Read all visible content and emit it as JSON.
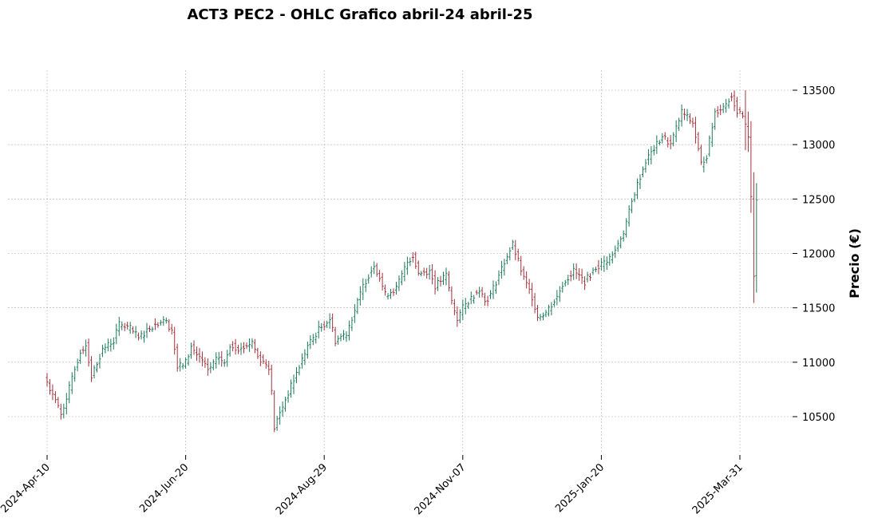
{
  "chart_data": {
    "type": "ohlc",
    "title": "ACT3 PEC2 - OHLC Grafico abril-24 abril-25",
    "ylabel": "Precio (€)",
    "xlabel": "",
    "ylim": [
      10150,
      13670
    ],
    "y_ticks": [
      10500,
      11000,
      11500,
      12000,
      12500,
      13000,
      13500
    ],
    "y_tick_labels": [
      "10500",
      "11000",
      "11500",
      "12000",
      "12500",
      "13000",
      "13500"
    ],
    "x_ticks": [
      "2024-Apr-10",
      "2024-Jun-20",
      "2024-Aug-29",
      "2024-Nov-07",
      "2025-Jan-20",
      "2025-Mar-31"
    ],
    "x_tick_index": [
      0,
      50,
      100,
      150,
      200,
      250
    ],
    "bar_count": 257,
    "grid": true,
    "y_axis_side": "right",
    "up_color": "#1b7a5c",
    "down_color": "#a3323c",
    "grid_color": "#b0b0b0",
    "price_anchors": [
      [
        0,
        10820
      ],
      [
        3,
        10650
      ],
      [
        5,
        10520
      ],
      [
        8,
        10760
      ],
      [
        12,
        11100
      ],
      [
        14,
        11160
      ],
      [
        16,
        10870
      ],
      [
        20,
        11120
      ],
      [
        24,
        11200
      ],
      [
        26,
        11350
      ],
      [
        30,
        11310
      ],
      [
        33,
        11220
      ],
      [
        37,
        11320
      ],
      [
        40,
        11360
      ],
      [
        42,
        11400
      ],
      [
        45,
        11300
      ],
      [
        47,
        10950
      ],
      [
        50,
        11000
      ],
      [
        52,
        11140
      ],
      [
        56,
        11010
      ],
      [
        58,
        10920
      ],
      [
        62,
        11050
      ],
      [
        64,
        10980
      ],
      [
        66,
        11160
      ],
      [
        70,
        11120
      ],
      [
        74,
        11190
      ],
      [
        76,
        11050
      ],
      [
        80,
        10960
      ],
      [
        81,
        10720
      ],
      [
        82,
        10400
      ],
      [
        86,
        10660
      ],
      [
        90,
        10900
      ],
      [
        94,
        11150
      ],
      [
        98,
        11300
      ],
      [
        102,
        11400
      ],
      [
        104,
        11200
      ],
      [
        108,
        11270
      ],
      [
        112,
        11550
      ],
      [
        114,
        11700
      ],
      [
        118,
        11900
      ],
      [
        120,
        11780
      ],
      [
        122,
        11620
      ],
      [
        126,
        11680
      ],
      [
        130,
        11920
      ],
      [
        132,
        11980
      ],
      [
        134,
        11820
      ],
      [
        138,
        11840
      ],
      [
        140,
        11700
      ],
      [
        144,
        11800
      ],
      [
        146,
        11560
      ],
      [
        148,
        11400
      ],
      [
        150,
        11500
      ],
      [
        152,
        11560
      ],
      [
        156,
        11680
      ],
      [
        158,
        11560
      ],
      [
        160,
        11620
      ],
      [
        162,
        11740
      ],
      [
        166,
        11980
      ],
      [
        168,
        12080
      ],
      [
        172,
        11770
      ],
      [
        175,
        11600
      ],
      [
        177,
        11420
      ],
      [
        180,
        11460
      ],
      [
        184,
        11600
      ],
      [
        186,
        11720
      ],
      [
        190,
        11840
      ],
      [
        194,
        11740
      ],
      [
        198,
        11870
      ],
      [
        200,
        11900
      ],
      [
        204,
        11980
      ],
      [
        208,
        12200
      ],
      [
        212,
        12560
      ],
      [
        216,
        12850
      ],
      [
        220,
        13000
      ],
      [
        222,
        13080
      ],
      [
        225,
        13000
      ],
      [
        229,
        13300
      ],
      [
        233,
        13200
      ],
      [
        236,
        12820
      ],
      [
        238,
        12900
      ],
      [
        241,
        13300
      ],
      [
        244,
        13350
      ],
      [
        247,
        13450
      ],
      [
        249,
        13300
      ],
      [
        251,
        13250
      ],
      [
        253,
        13080
      ],
      [
        254,
        12500
      ],
      [
        255,
        11800
      ],
      [
        256,
        12520
      ]
    ]
  }
}
